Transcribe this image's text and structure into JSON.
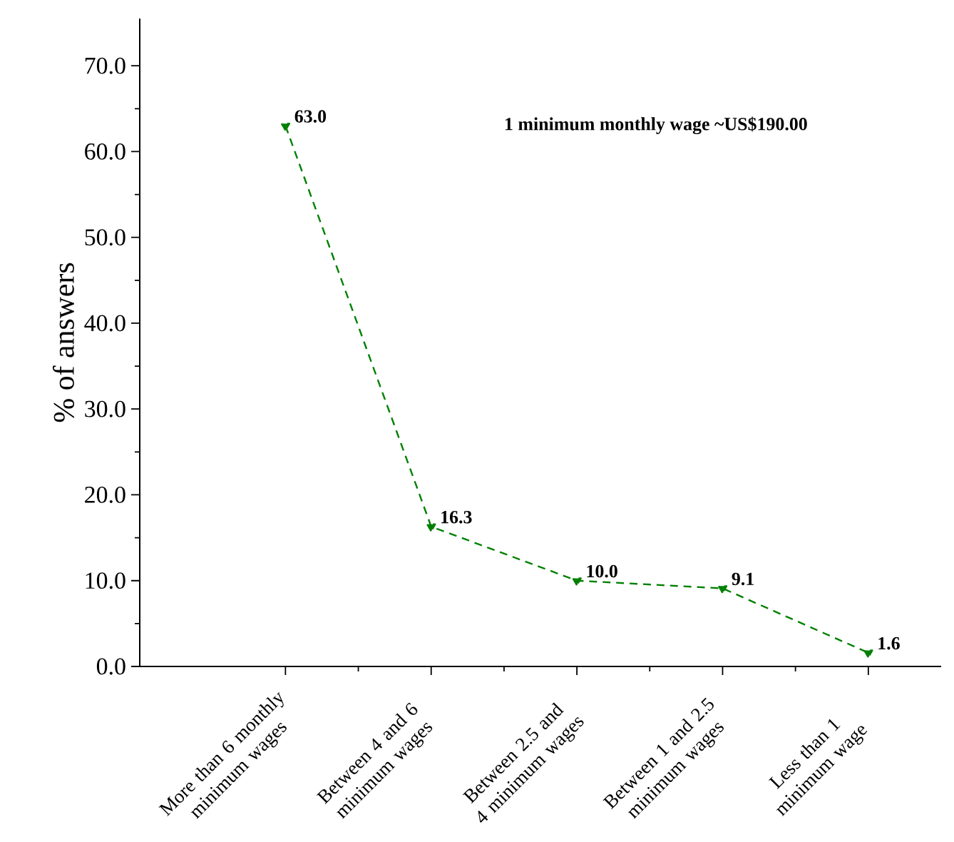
{
  "chart_data": {
    "type": "line",
    "ylabel": "% of answers",
    "categories": [
      "More than 6 monthly minimum wages",
      "Between 4 and 6 minimum wages",
      "Between 2.5 and 4 minimum wages",
      "Between 1 and 2.5 minimum wages",
      "Less than 1 minimum wage"
    ],
    "series": [
      {
        "color": "#008000",
        "values": [
          63.0,
          16.3,
          10.0,
          9.1,
          1.6
        ],
        "value_labels": [
          "63.0",
          "16.3",
          "10.0",
          "9.1",
          "1.6"
        ]
      }
    ],
    "ylim": [
      0,
      75.5
    ],
    "yticks": [
      {
        "value": 0,
        "label": "0.0"
      },
      {
        "value": 10,
        "label": "10.0"
      },
      {
        "value": 20,
        "label": "20.0"
      },
      {
        "value": 30,
        "label": "30.0"
      },
      {
        "value": 40,
        "label": "40.0"
      },
      {
        "value": 50,
        "label": "50.0"
      },
      {
        "value": 60,
        "label": "60.0"
      },
      {
        "value": 70,
        "label": "70.0"
      }
    ],
    "annotations": [
      "1 minimum monthly wage ~US$190.00"
    ],
    "marker": "triangle",
    "line_style": "dashed"
  }
}
